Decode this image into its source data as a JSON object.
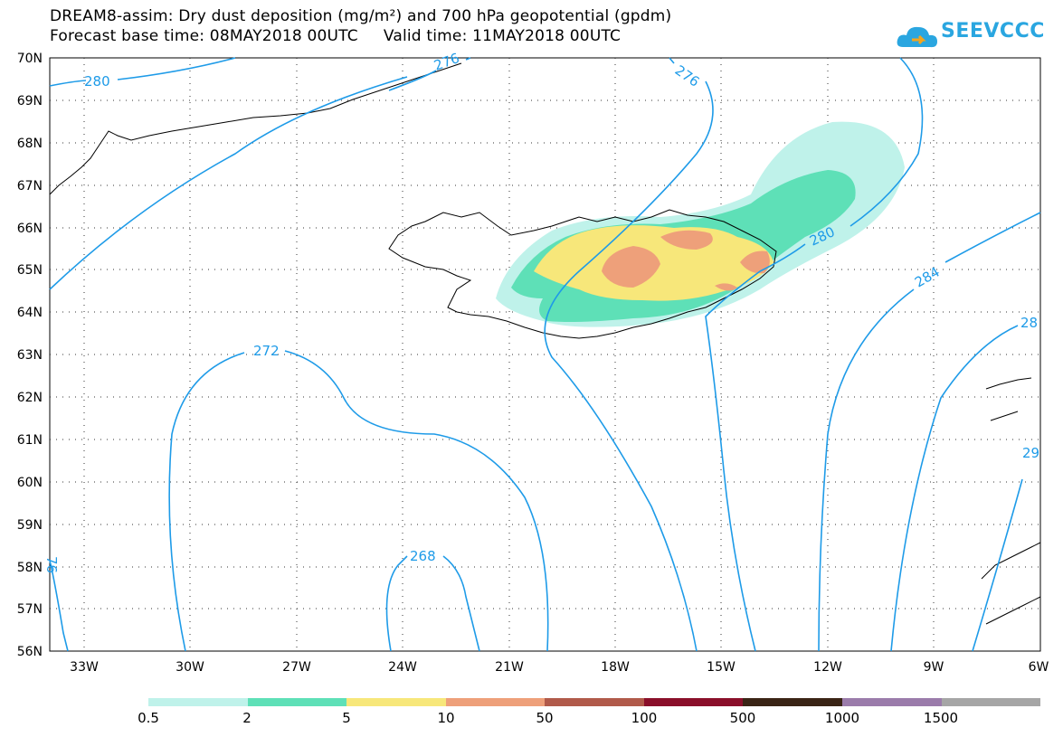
{
  "title_line1": "DREAM8-assim: Dry dust deposition (mg/m²) and 700 hPa geopotential (gpdm)",
  "title_line2": "Forecast base time: 08MAY2018 00UTC     Valid time: 11MAY2018 00UTC",
  "logo_text": "SEEVCCC",
  "lat_labels": [
    "70N",
    "69N",
    "68N",
    "67N",
    "66N",
    "65N",
    "64N",
    "63N",
    "62N",
    "61N",
    "60N",
    "59N",
    "58N",
    "57N",
    "56N"
  ],
  "lon_labels": [
    "33W",
    "30W",
    "27W",
    "24W",
    "21W",
    "18W",
    "15W",
    "12W",
    "9W",
    "6W"
  ],
  "contour_labels": [
    "280",
    "276",
    "276",
    "272",
    "268",
    "280",
    "284",
    "28",
    "29",
    "76"
  ],
  "colorbar": {
    "colors": [
      "#bff2ea",
      "#5ee0b7",
      "#f7e77a",
      "#eea07a",
      "#b15a4a",
      "#8a0f2a",
      "#3a2415",
      "#9b7cab",
      "#a6a6a6"
    ],
    "labels": [
      "0.5",
      "2",
      "5",
      "10",
      "50",
      "100",
      "500",
      "1000",
      "1500"
    ]
  },
  "colors": {
    "contour": "#1e9be8",
    "coast": "#000000"
  }
}
